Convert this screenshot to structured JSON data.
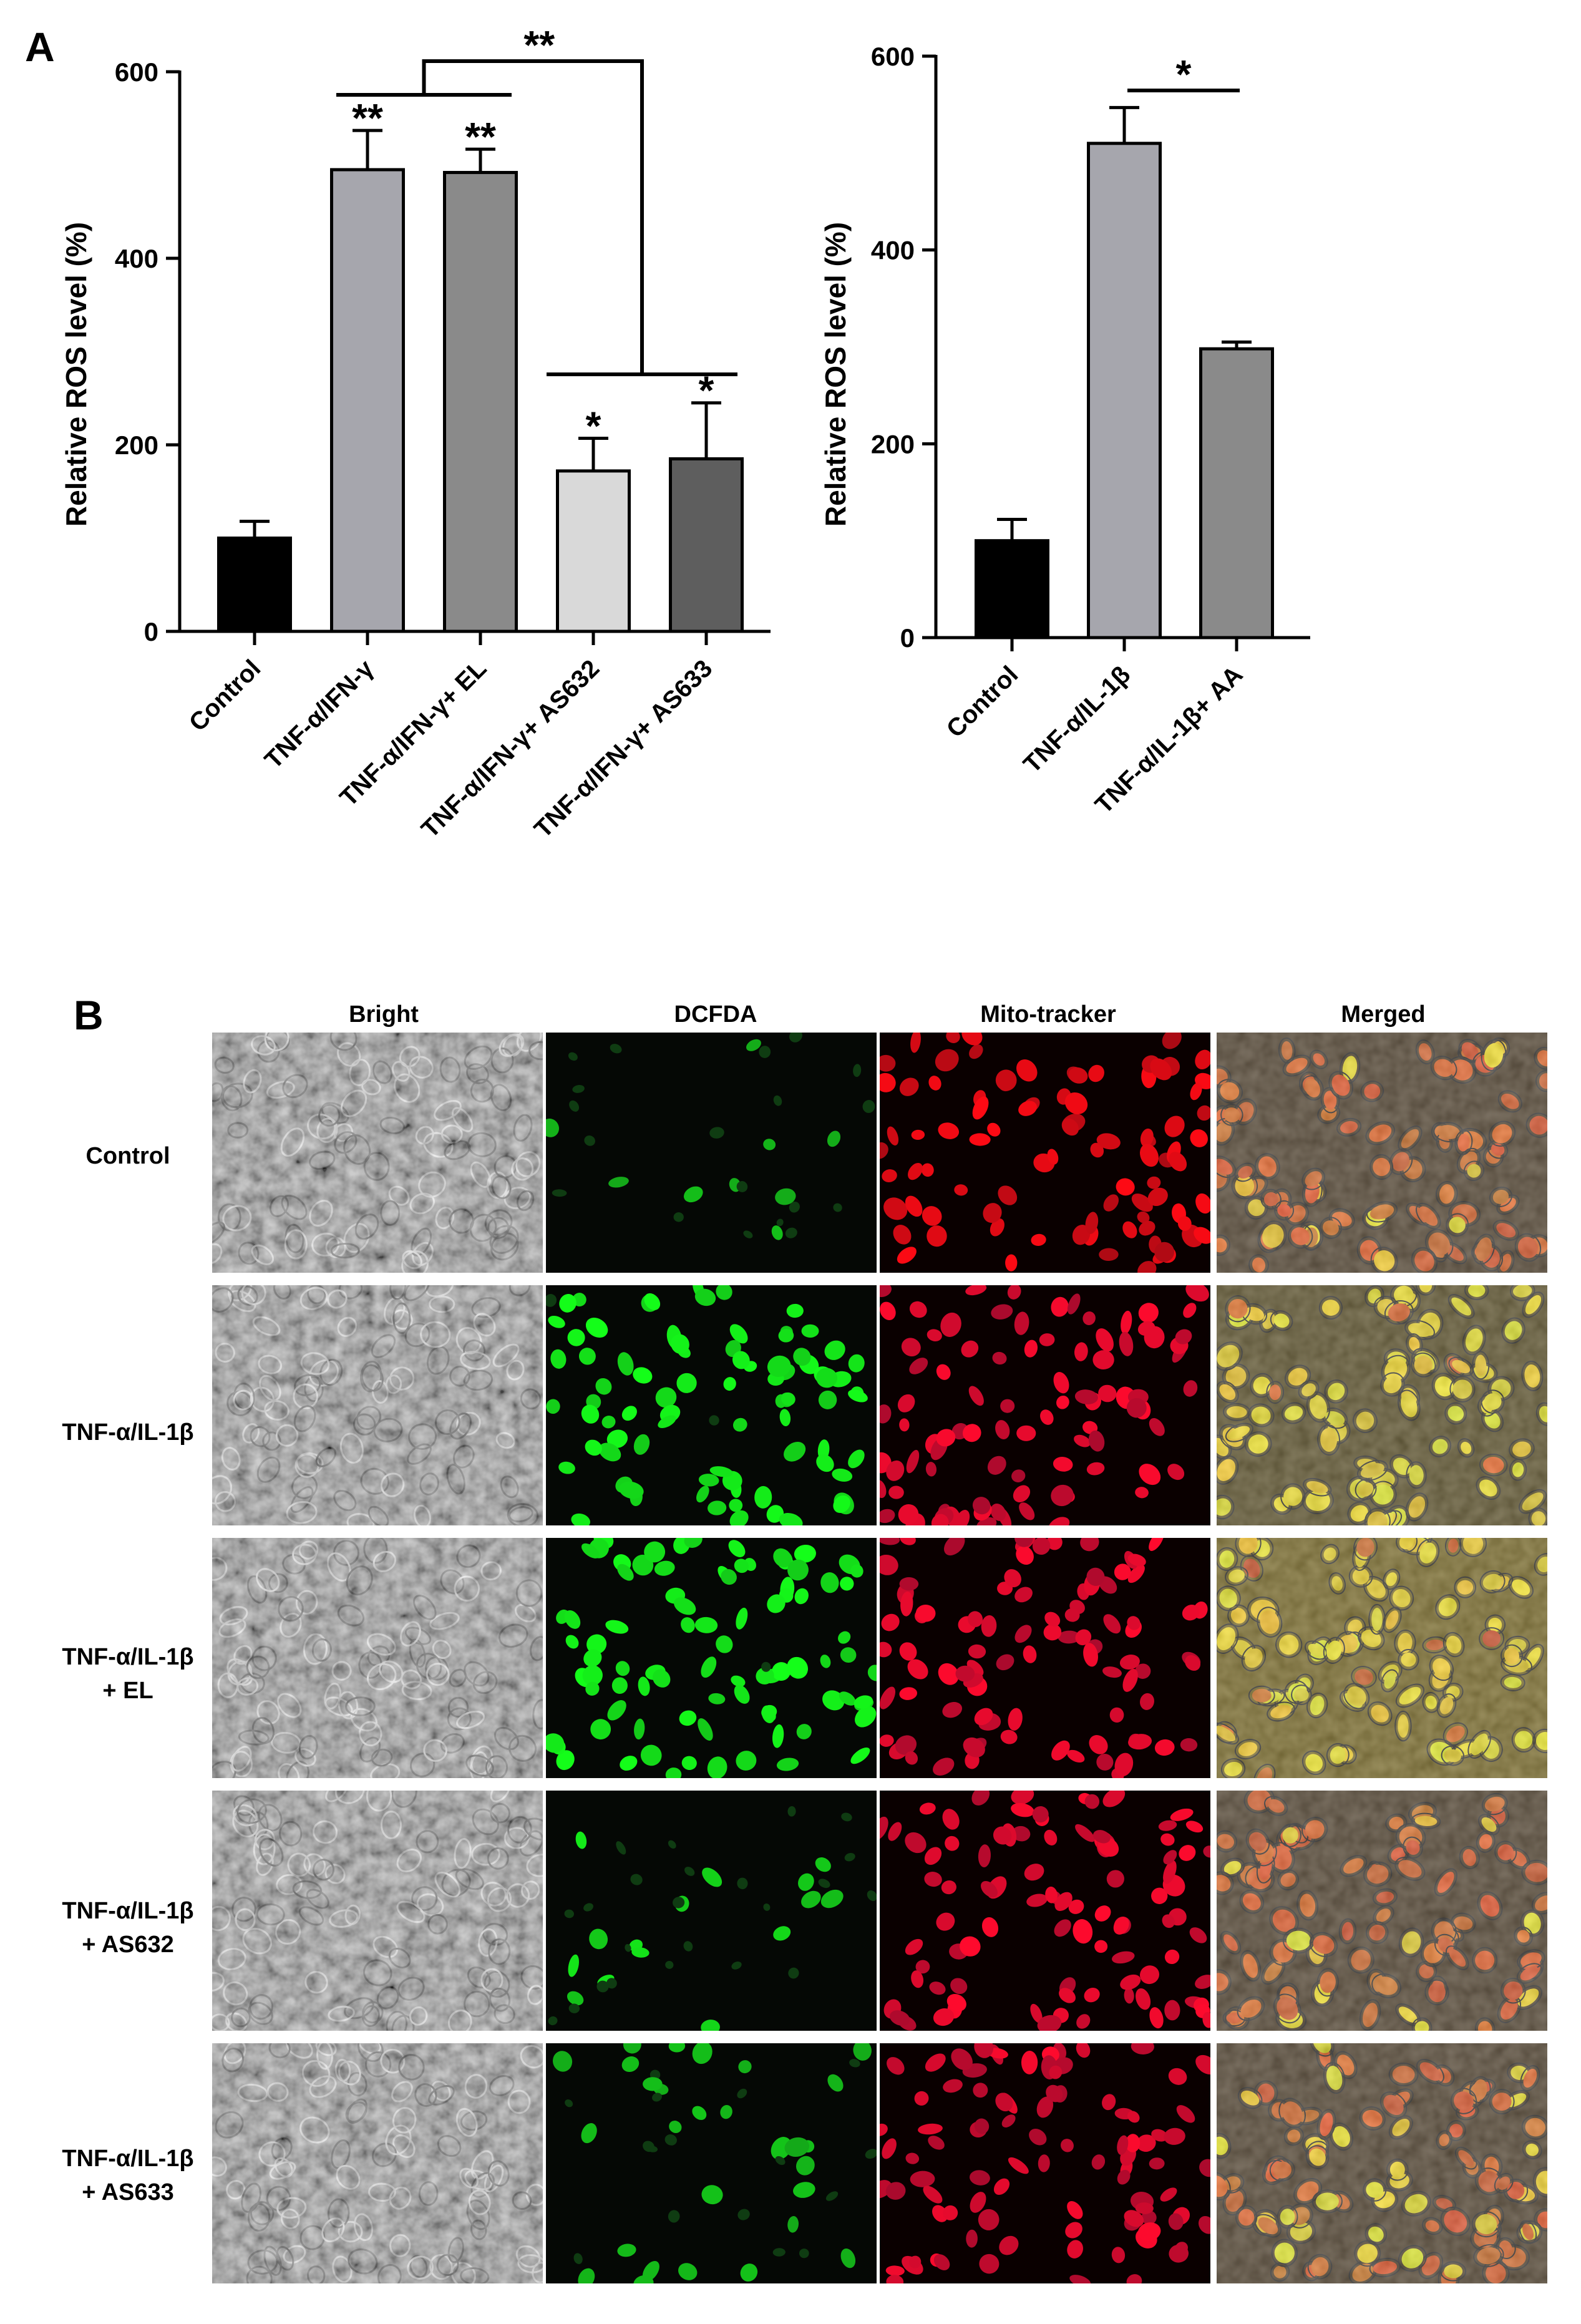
{
  "panel_a_label": "A",
  "panel_b_label": "B",
  "chart_data": [
    {
      "type": "bar",
      "ylabel": "Relative ROS level (%)",
      "ylim": [
        0,
        600
      ],
      "yticks": [
        0,
        200,
        400,
        600
      ],
      "ytick_labels": [
        "0",
        "200",
        "400",
        "600"
      ],
      "categories": [
        "Control",
        "TNF-α/IFN-γ",
        "TNF-α/IFN-γ+ EL",
        "TNF-α/IFN-γ+ AS632",
        "TNF-α/IFN-γ+ AS633"
      ],
      "values": [
        100,
        495,
        492,
        172,
        185
      ],
      "errors": [
        18,
        42,
        25,
        35,
        60
      ],
      "bar_colors": [
        "#000000",
        "#a6a6ad",
        "#8a8a8a",
        "#d9d9d9",
        "#5e5e5e"
      ],
      "bar_significance": [
        "",
        "**",
        "**",
        "*",
        "*"
      ],
      "comparisons": [
        {
          "from_group": [
            1,
            2
          ],
          "to_group": [
            3,
            4
          ],
          "label": "**"
        }
      ]
    },
    {
      "type": "bar",
      "ylabel": "Relative ROS level (%)",
      "ylim": [
        0,
        600
      ],
      "yticks": [
        0,
        200,
        400,
        600
      ],
      "ytick_labels": [
        "0",
        "200",
        "400",
        "600"
      ],
      "categories": [
        "Control",
        "TNF-α/IL-1β",
        "TNF-α/IL-1β+ AA"
      ],
      "values": [
        100,
        510,
        298
      ],
      "errors": [
        22,
        37,
        7
      ],
      "bar_colors": [
        "#000000",
        "#a6a6ad",
        "#8a8a8a"
      ],
      "comparisons": [
        {
          "between": [
            1,
            2
          ],
          "label": "*"
        }
      ]
    }
  ],
  "micrographs": {
    "columns": [
      "Bright",
      "DCFDA",
      "Mito-tracker",
      "Merged"
    ],
    "rows": [
      [
        "Control"
      ],
      [
        "TNF-α/IL-1β"
      ],
      [
        "TNF-α/IL-1β",
        "+ EL"
      ],
      [
        "TNF-α/IL-1β",
        "+ AS632"
      ],
      [
        "TNF-α/IL-1β",
        "+ AS633"
      ]
    ]
  }
}
